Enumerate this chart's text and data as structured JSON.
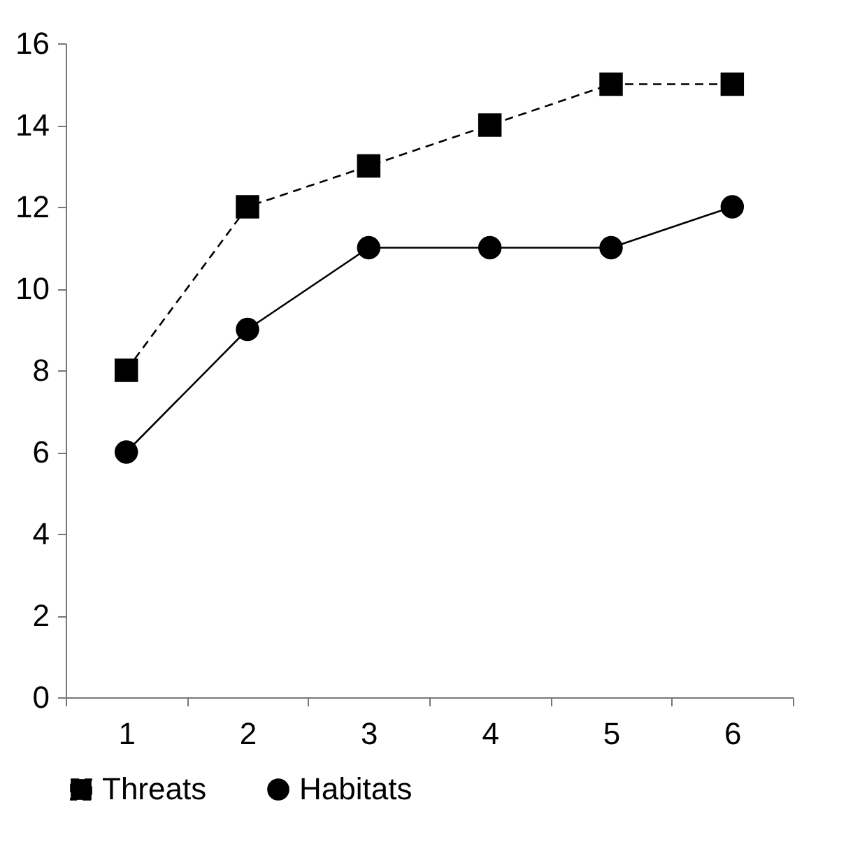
{
  "chart_data": {
    "type": "line",
    "categories": [
      "1",
      "2",
      "3",
      "4",
      "5",
      "6"
    ],
    "series": [
      {
        "name": "Threats",
        "color": "#000000",
        "values": [
          8,
          12,
          13,
          14,
          15,
          15
        ],
        "line_style": "dashed",
        "marker": "square"
      },
      {
        "name": "Habitats",
        "color": "#000000",
        "values": [
          6,
          9,
          11,
          11,
          11,
          12
        ],
        "line_style": "solid",
        "marker": "circle"
      }
    ],
    "ylim": [
      0,
      16
    ],
    "yticks": [
      0,
      2,
      4,
      6,
      8,
      10,
      12,
      14,
      16
    ],
    "grid": false,
    "legend": "bottom"
  }
}
